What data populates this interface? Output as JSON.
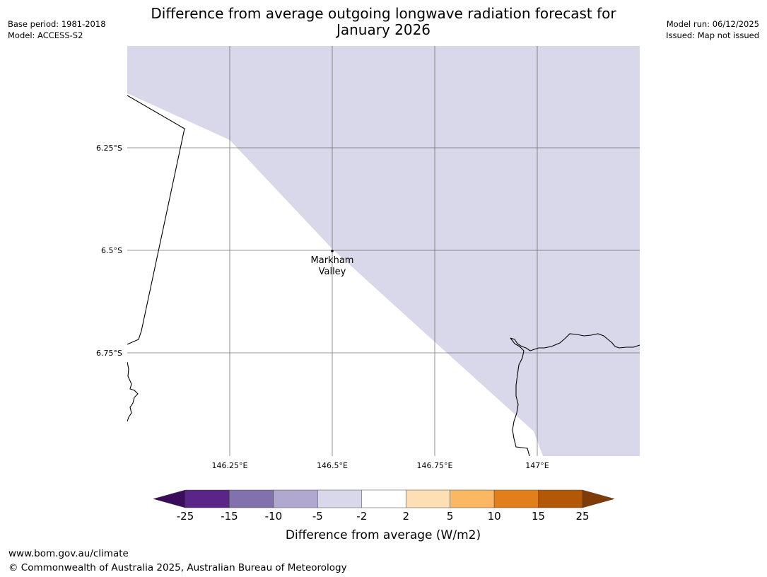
{
  "title_line1": "Difference from average outgoing longwave radiation forecast for",
  "title_line2": "January 2026",
  "meta_left": {
    "base_period": "Base period: 1981-2018",
    "model": "Model: ACCESS-S2"
  },
  "meta_right": {
    "model_run": "Model run: 06/12/2025",
    "issued": "Issued: Map not issued"
  },
  "map": {
    "lat_ticks": [
      "6.25°S",
      "6.5°S",
      "6.75°S"
    ],
    "lon_ticks": [
      "146.25°E",
      "146.5°E",
      "146.75°E",
      "147°E"
    ],
    "place": {
      "name_line1": "Markham",
      "name_line2": "Valley"
    },
    "anomaly_colour": "#d8d8ea"
  },
  "colorbar": {
    "labels": [
      "-25",
      "-15",
      "-10",
      "-5",
      "-2",
      "2",
      "5",
      "10",
      "15",
      "25"
    ],
    "colors": [
      "#5a2586",
      "#8371ae",
      "#b0a8cf",
      "#d8d8ea",
      "#ffffff",
      "#fddfb4",
      "#fbb762",
      "#e1801a",
      "#b35806"
    ],
    "extend_low": "#3b0c5c",
    "extend_high": "#7f3b08",
    "label": "Difference from average (W/m2)"
  },
  "footer": {
    "url": "www.bom.gov.au/climate",
    "copyright": "© Commonwealth of Australia 2025, Australian Bureau of Meteorology"
  }
}
